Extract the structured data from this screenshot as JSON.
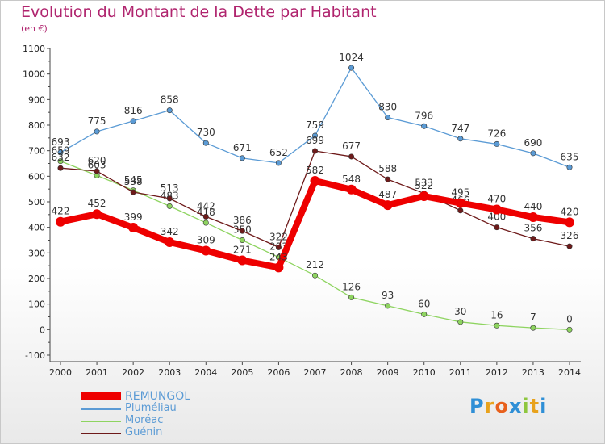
{
  "title": "Evolution du Montant de la Dette par Habitant",
  "unit_label": "(en €)",
  "colors": {
    "title": "#b0246e",
    "REMUNGOL": "#ee0000",
    "Pluméliau": "#5b9bd5",
    "Moréac": "#8ed460",
    "Guénin": "#6e1a1a"
  },
  "legend": [
    {
      "name": "REMUNGOL",
      "color": "#ee0000"
    },
    {
      "name": "Pluméliau",
      "color": "#5b9bd5"
    },
    {
      "name": "Moréac",
      "color": "#8ed460"
    },
    {
      "name": "Guénin",
      "color": "#6e1a1a"
    }
  ],
  "logo": {
    "text": "Proxiti",
    "letter_colors": [
      "#2f8fd6",
      "#e8a21c",
      "#e8601c",
      "#2f8fd6",
      "#8ec63f",
      "#e8a21c",
      "#2f8fd6"
    ]
  },
  "chart_data": {
    "type": "line",
    "title": "Evolution du Montant de la Dette par Habitant",
    "ylabel": "(en €)",
    "x": [
      "2000",
      "2001",
      "2002",
      "2003",
      "2004",
      "2005",
      "2006",
      "2007",
      "2008",
      "2009",
      "2010",
      "2011",
      "2012",
      "2013",
      "2014"
    ],
    "ylim": [
      -100,
      1100
    ],
    "yticks": [
      -100,
      0,
      100,
      200,
      300,
      400,
      500,
      600,
      700,
      800,
      900,
      1000,
      1100
    ],
    "grid": false,
    "legend_position": "bottom-left",
    "series": [
      {
        "name": "Pluméliau",
        "color": "#5b9bd5",
        "values": [
          693,
          775,
          816,
          858,
          730,
          671,
          652,
          759,
          1024,
          830,
          796,
          747,
          726,
          690,
          635
        ]
      },
      {
        "name": "Moréac",
        "color": "#8ed460",
        "values": [
          659,
          603,
          545,
          483,
          418,
          350,
          283,
          212,
          126,
          93,
          60,
          30,
          16,
          7,
          0
        ]
      },
      {
        "name": "Guénin",
        "color": "#6e1a1a",
        "values": [
          632,
          620,
          538,
          513,
          442,
          386,
          322,
          699,
          677,
          588,
          533,
          466,
          400,
          356,
          326
        ]
      },
      {
        "name": "REMUNGOL",
        "color": "#ee0000",
        "values": [
          422,
          452,
          399,
          342,
          309,
          271,
          243,
          582,
          548,
          487,
          522,
          495,
          470,
          440,
          420
        ]
      }
    ]
  }
}
